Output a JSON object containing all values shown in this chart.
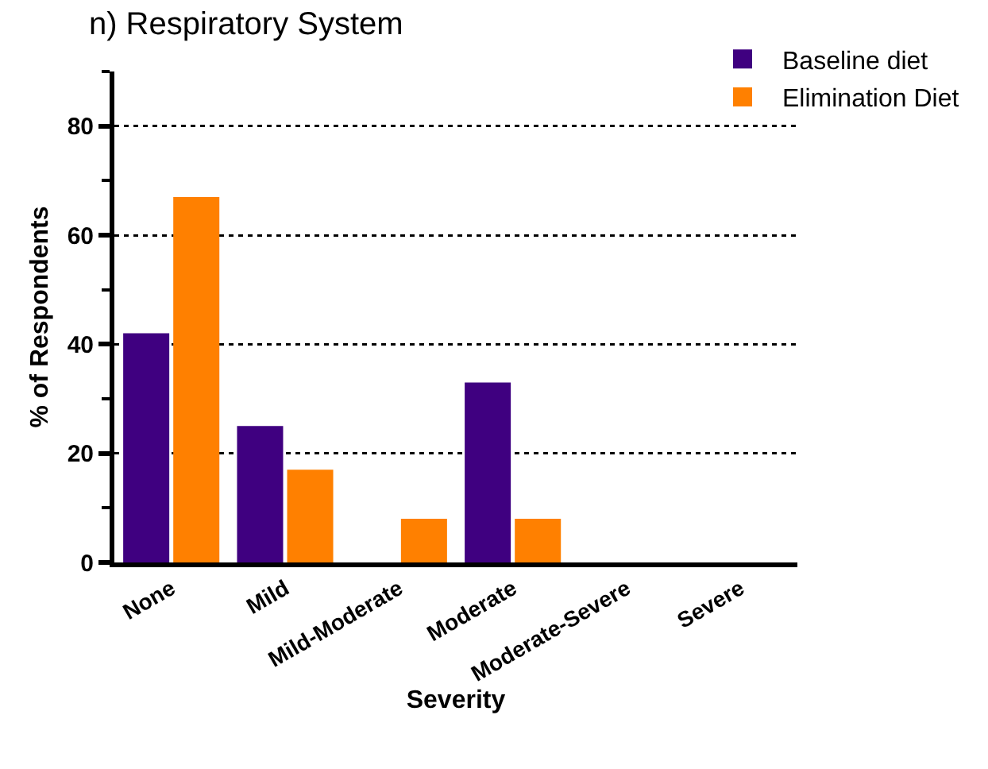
{
  "chart_data": {
    "type": "bar",
    "title": "n) Respiratory System",
    "xlabel": "Severity",
    "ylabel": "% of Respondents",
    "categories": [
      "None",
      "Mild",
      "Mild-Moderate",
      "Moderate",
      "Moderate-Severe",
      "Severe"
    ],
    "series": [
      {
        "name": "Baseline diet",
        "color": "#3f0080",
        "values": [
          42,
          25,
          0,
          33,
          0,
          0
        ]
      },
      {
        "name": "Elimination Diet",
        "color": "#ff8000",
        "values": [
          67,
          17,
          8,
          8,
          0,
          0
        ]
      }
    ],
    "ylim": [
      0,
      90
    ],
    "yticks": [
      0,
      20,
      40,
      60,
      80
    ],
    "grid": "y",
    "legend": "top right"
  }
}
